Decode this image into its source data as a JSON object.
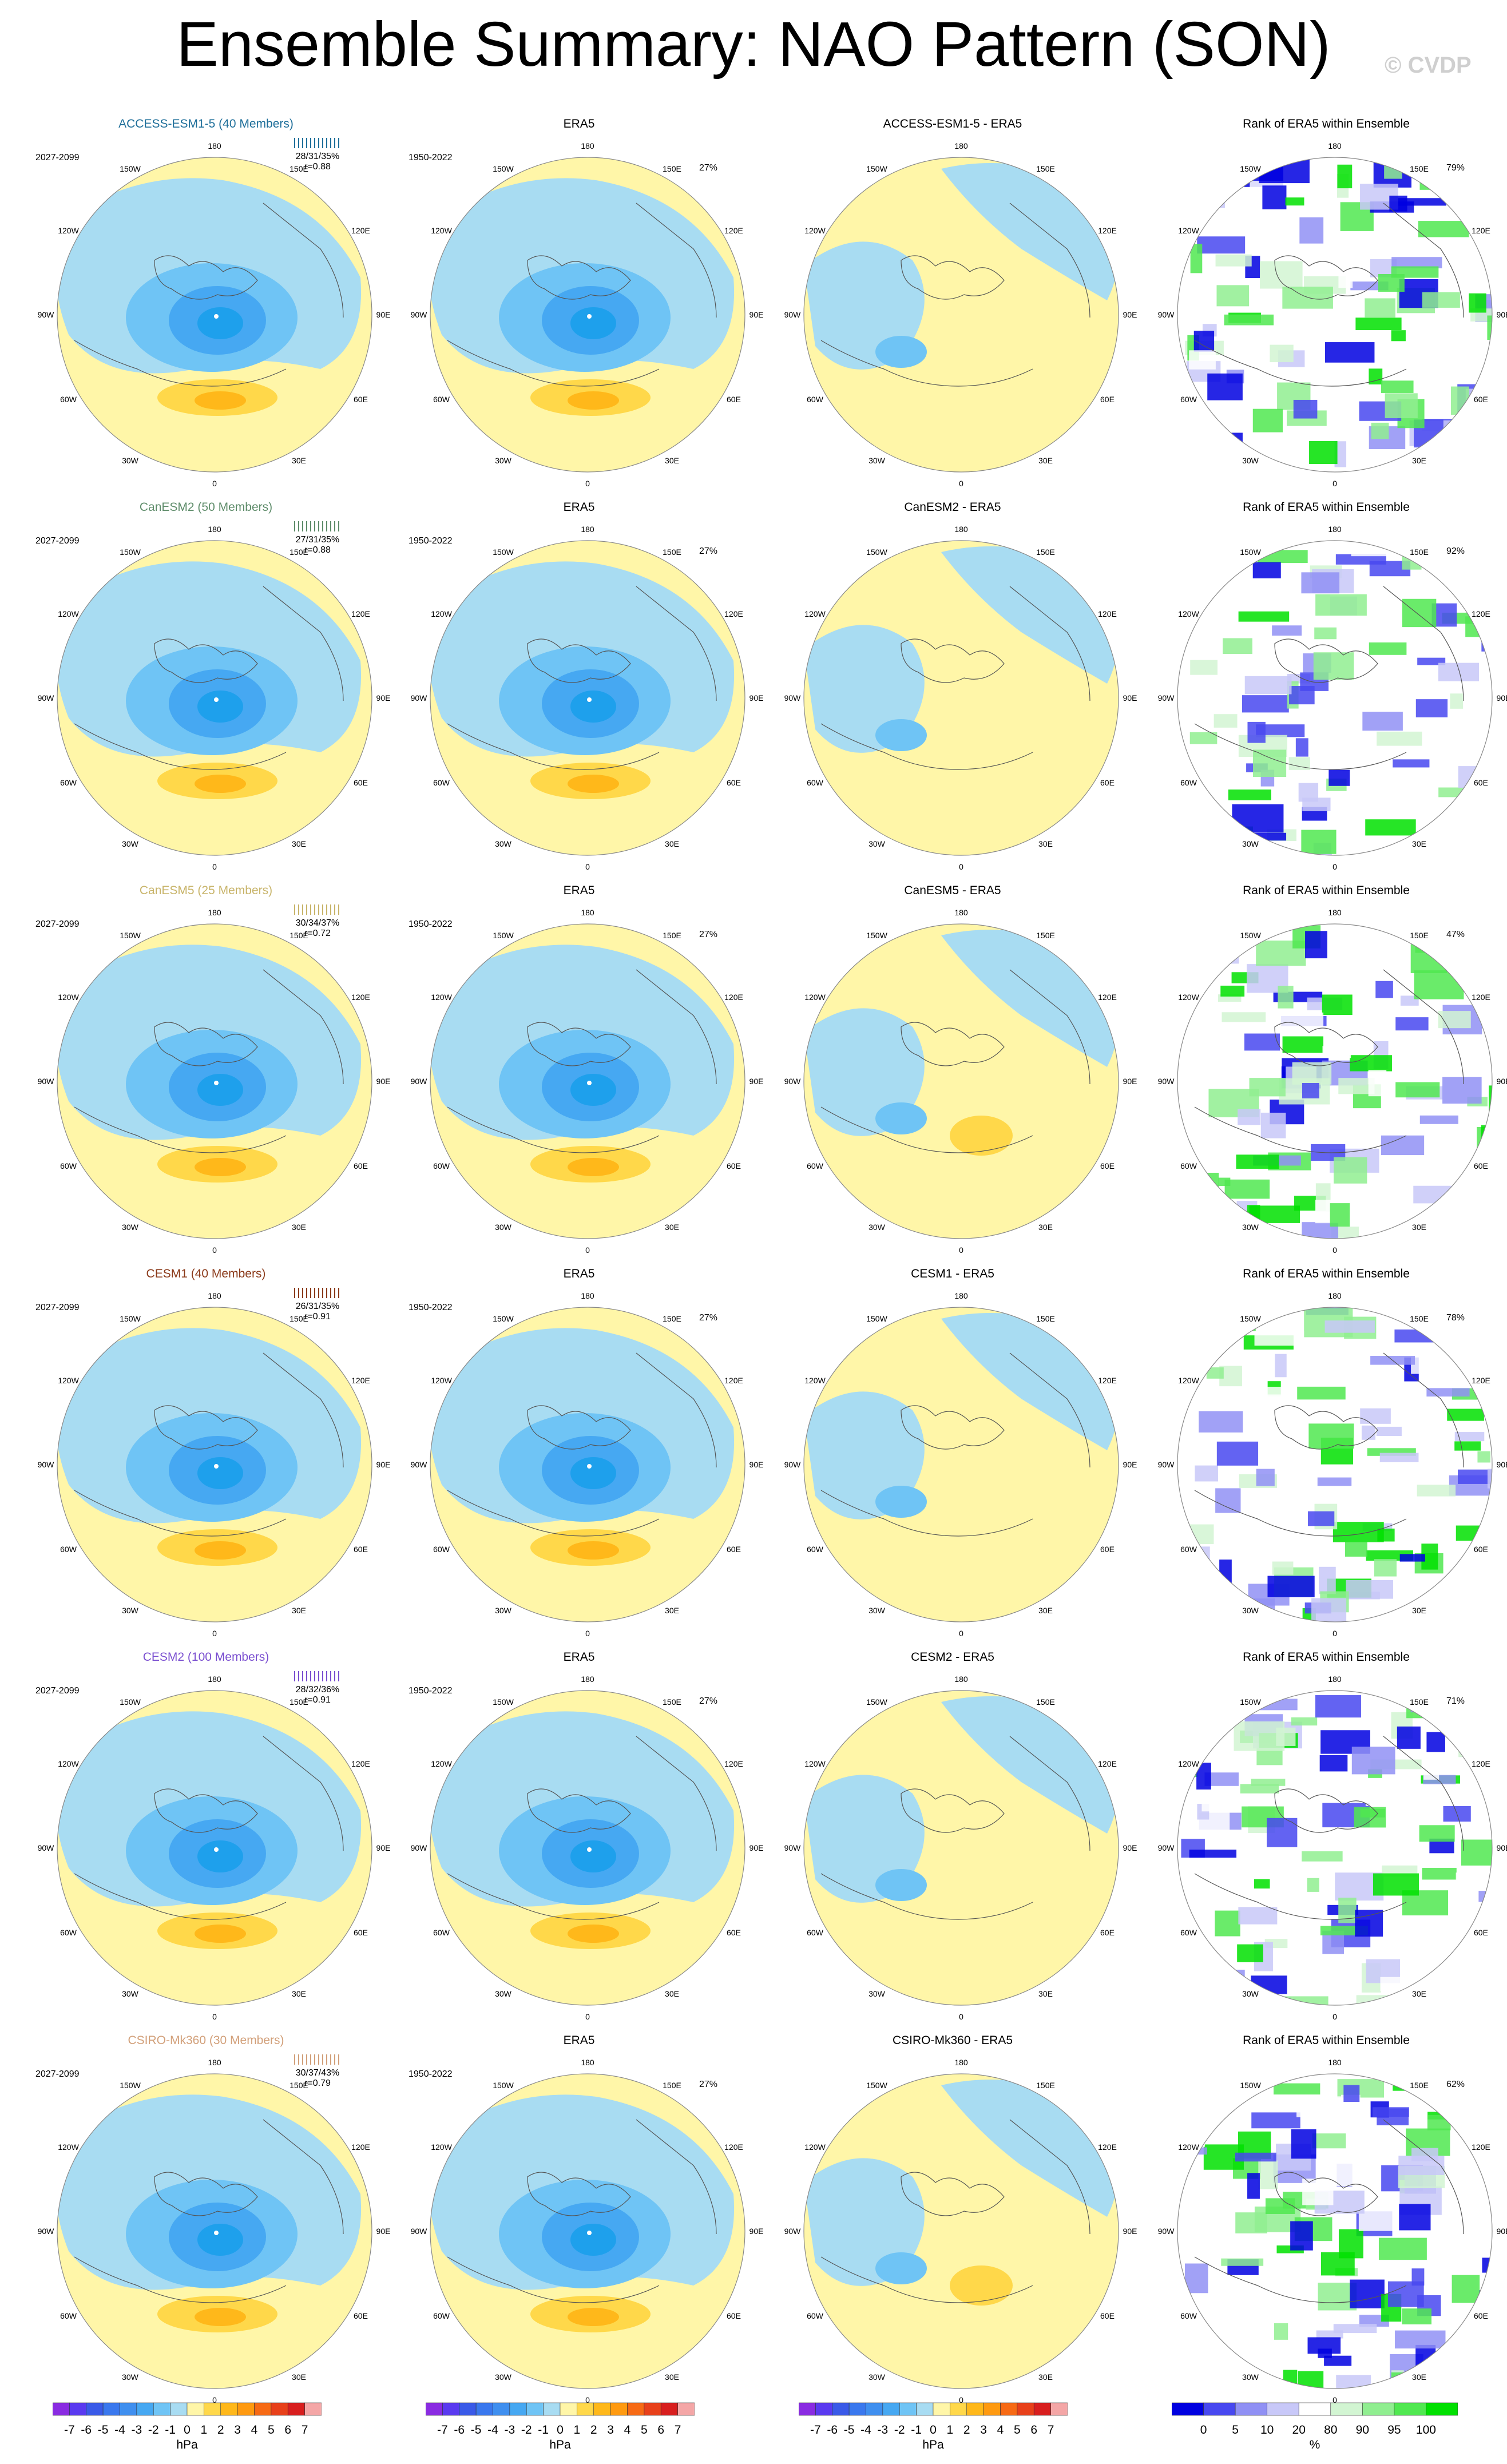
{
  "page": {
    "title": "Ensemble Summary: NAO Pattern (SON)",
    "watermark": "© CVDP"
  },
  "common": {
    "obs_title": "ERA5",
    "rank_title": "Rank of ERA5 within Ensemble",
    "model_period": "2027-2099",
    "obs_period": "1950-2022",
    "obs_pct": "27%",
    "lon_labels": [
      "180",
      "150E",
      "120E",
      "90E",
      "60E",
      "30E",
      "0",
      "30W",
      "60W",
      "90W",
      "120W",
      "150W"
    ]
  },
  "rows": [
    {
      "model_title": "ACCESS-ESM1-5 (40 Members)",
      "model_color": "#1f6f9a",
      "diff_title": "ACCESS-ESM1-5 - ERA5",
      "stats": "28/31/35%",
      "corr": "r=0.88",
      "rank_pct": "79%"
    },
    {
      "model_title": "CanESM2 (50 Members)",
      "model_color": "#5e8c6a",
      "diff_title": "CanESM2 - ERA5",
      "stats": "27/31/35%",
      "corr": "r=0.88",
      "rank_pct": "92%"
    },
    {
      "model_title": "CanESM5 (25 Members)",
      "model_color": "#c8b46a",
      "diff_title": "CanESM5 - ERA5",
      "stats": "30/34/37%",
      "corr": "r=0.72",
      "rank_pct": "47%"
    },
    {
      "model_title": "CESM1 (40 Members)",
      "model_color": "#8b3a1a",
      "diff_title": "CESM1 - ERA5",
      "stats": "26/31/35%",
      "corr": "r=0.91",
      "rank_pct": "78%"
    },
    {
      "model_title": "CESM2 (100 Members)",
      "model_color": "#7a4fd0",
      "diff_title": "CESM2 - ERA5",
      "stats": "28/32/36%",
      "corr": "r=0.91",
      "rank_pct": "71%"
    },
    {
      "model_title": "CSIRO-Mk360 (30 Members)",
      "model_color": "#d2a07a",
      "diff_title": "CSIRO-Mk360 - ERA5",
      "stats": "30/37/43%",
      "corr": "r=0.79",
      "rank_pct": "62%"
    }
  ],
  "colorbars": {
    "hpa": {
      "labels": [
        "-7",
        "-6",
        "-5",
        "-4",
        "-3",
        "-2",
        "-1",
        "0",
        "1",
        "2",
        "3",
        "4",
        "5",
        "6",
        "7"
      ],
      "unit": "hPa",
      "colors": [
        "#8a2be2",
        "#5a3af0",
        "#3a5ae8",
        "#3a78ee",
        "#3f8fef",
        "#46a8f2",
        "#6fc4f5",
        "#a8dcf2",
        "#fff6a8",
        "#ffd84a",
        "#ffb81a",
        "#ff9a10",
        "#f76a14",
        "#e8401a",
        "#d81e1e",
        "#f4a6a6"
      ]
    },
    "pct": {
      "labels": [
        "0",
        "5",
        "10",
        "20",
        "80",
        "90",
        "95",
        "100"
      ],
      "unit": "%",
      "colors": [
        "#0000e0",
        "#4848f0",
        "#9090f4",
        "#c8c8f8",
        "#ffffff",
        "#d2f5d2",
        "#90ee90",
        "#50e850",
        "#00e000"
      ]
    }
  }
}
